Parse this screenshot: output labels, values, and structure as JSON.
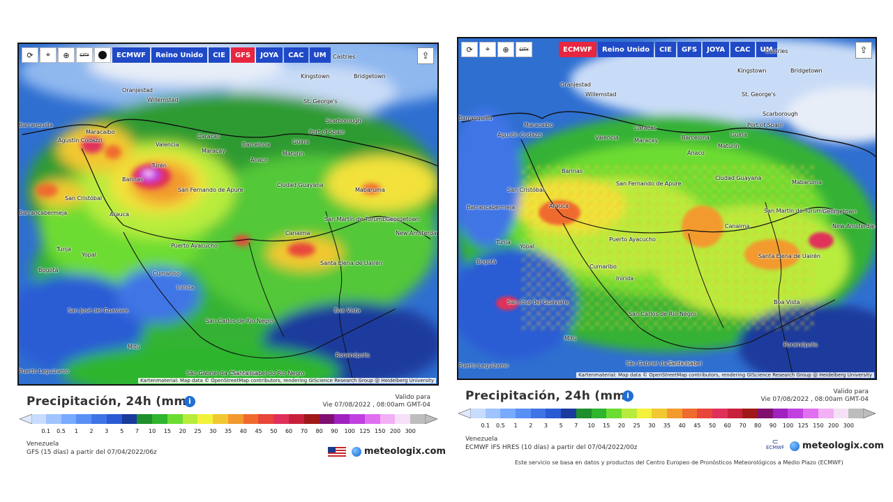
{
  "toolbar": {
    "icons": [
      "refresh-icon",
      "location-pin-icon",
      "zoom-icon",
      "city-labels-icon",
      "dot-icon"
    ],
    "city_icon_text": "CITY",
    "models": [
      "ECMWF",
      "Reino Unido",
      "CIE",
      "GFS",
      "JOYA",
      "CAC",
      "UM"
    ]
  },
  "left": {
    "active_model": "GFS",
    "title": "Precipitación, 24h (mm)",
    "valid_label": "Valido para",
    "valid_date": "Vie 07/08/2022 , 08:00am GMT-04",
    "region": "Venezuela",
    "model_run": "GFS (15 días) a partir del 07/04/2022/06z",
    "brand": "meteologix.com"
  },
  "right": {
    "active_model": "ECMWF",
    "title": "Precipitación, 24h (mm)",
    "valid_label": "Valido para",
    "valid_date": "Vie 07/08/2022 , 08:00am GMT-04",
    "region": "Venezuela",
    "model_run": "ECMWF IFS HRES (10 días) a partir del 07/04/2022/00z",
    "brand": "meteologix.com",
    "ecmwf_mark": "ECMWF",
    "footer": "Este servicio se basa en datos y productos del Centro Europeo de Pronósticos Meteorológicos a Medio Plazo (ECMWF)"
  },
  "attribution": "Kartenmaterial: Map data © OpenStreetMap contributors, rendering GIScience Research Group @ Heidelberg University",
  "scale": {
    "labels": [
      "0.1",
      "0.5",
      "1",
      "2",
      "3",
      "5",
      "7",
      "10",
      "15",
      "20",
      "25",
      "30",
      "35",
      "40",
      "45",
      "50",
      "60",
      "70",
      "80",
      "90",
      "100",
      "125",
      "150",
      "200",
      "300"
    ],
    "colors": [
      "#c8dcff",
      "#9fc4ff",
      "#78aaff",
      "#5a8ff5",
      "#3f74e6",
      "#2a5bd4",
      "#1a3a9c",
      "#1f8f2e",
      "#2fb52e",
      "#6ddc32",
      "#b8ec3c",
      "#f2f23a",
      "#f2c832",
      "#f29a2e",
      "#ef6b2d",
      "#e8463a",
      "#e0305a",
      "#c8203a",
      "#a01818",
      "#801070",
      "#a020c0",
      "#c040e0",
      "#e070f0",
      "#f2b0f5",
      "#f6e0f8",
      "#bdbdbd"
    ]
  },
  "cities_left": [
    "Castries",
    "Kingstown",
    "Bridgetown",
    "Oranjestad",
    "Willemstad",
    "St. George's",
    "Scarborough",
    "Port of Spain",
    "Barranquilla",
    "Maracaibo",
    "Caracas",
    "Maracay",
    "Valencia",
    "Barcelona",
    "Güiria",
    "Maturín",
    "Agustín Codazzi",
    "Anaco",
    "Turén",
    "Barinas",
    "San Cristóbal",
    "San Fernando de Apure",
    "Ciudad Guayana",
    "Mabaruma",
    "Barrancabermeja",
    "Arauca",
    "San Martín de Turumbang",
    "Georgetown",
    "New Amsterdam",
    "Canaima",
    "Tunja",
    "Yopal",
    "Puerto Ayacucho",
    "Bogotá",
    "Cumaribo",
    "Santa Elena de Uairén",
    "Inírida",
    "San José del Guaviare",
    "Boa Vista",
    "San Carlos de Río Negro",
    "Mitú",
    "Rorainópolis",
    "Puerto Leguízamo",
    "São Gabriel da Cachoeira",
    "Santa Isabel do Rio Negro"
  ],
  "cities_right": [
    "Castries",
    "Kingstown",
    "Bridgetown",
    "Oranjestad",
    "Willemstad",
    "St. George's",
    "Scarborough",
    "Port of Spain",
    "Barranquilla",
    "Maracaibo",
    "Caracas",
    "Maracay",
    "Valencia",
    "Barcelona",
    "Güiria",
    "Maturín",
    "Agustín Codazzi",
    "Anaco",
    "Barinas",
    "San Cristóbal",
    "San Fernando de Apure",
    "Ciudad Guayana",
    "Mabaruma",
    "Barrancabermeja",
    "Arauca",
    "San Martín de Turumbang",
    "Georgetown",
    "New Amsterdam",
    "Canaima",
    "Tunja",
    "Yopal",
    "Puerto Ayacucho",
    "Bogotá",
    "Cumaribo",
    "Santa Elena de Uairén",
    "Inírida",
    "San José del Guaviare",
    "Boa Vista",
    "San Carlos de Río Negro",
    "Mitú",
    "Rorainópolis",
    "Puerto Leguízamo",
    "São Gabriel da Cachoeira",
    "Santa Isabel"
  ]
}
